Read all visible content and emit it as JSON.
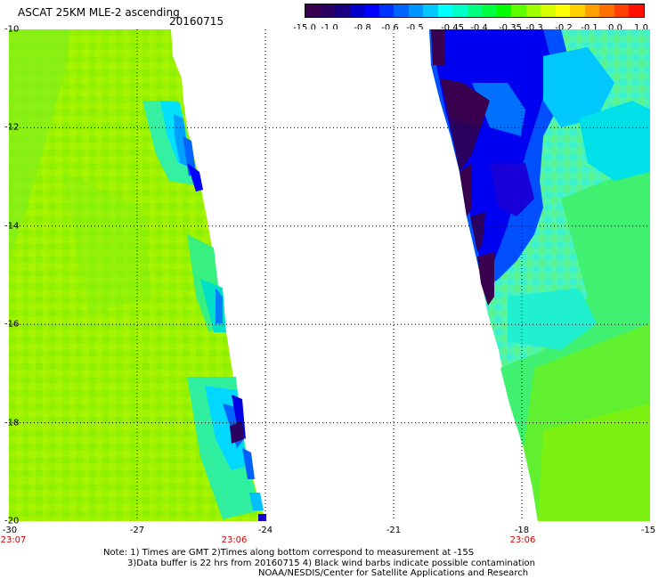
{
  "header": {
    "title": "ASCAT 25KM MLE-2 ascending",
    "date": "20160715"
  },
  "colorbar": {
    "colors": [
      "#3a0050",
      "#2a0060",
      "#1a0080",
      "#0000c8",
      "#0000ff",
      "#0032ff",
      "#0064ff",
      "#0096ff",
      "#00c8ff",
      "#00ffff",
      "#00ffc8",
      "#00ff80",
      "#00ff40",
      "#00ff00",
      "#60ff00",
      "#a0ff00",
      "#d8ff00",
      "#ffff00",
      "#ffd000",
      "#ffa000",
      "#ff7000",
      "#ff4000",
      "#ff1000"
    ],
    "tick_labels": [
      "-15.0",
      "-1.0",
      "-0.8",
      "-0.6",
      "-0.5",
      "-0.45",
      "-0.4",
      "-0.35",
      "-0.3",
      "-0.2",
      "-0.1",
      "0.0",
      "1.0"
    ]
  },
  "map": {
    "lon_range": [
      -30,
      -15
    ],
    "lat_range": [
      -20,
      -10
    ],
    "x_tick_labels": [
      "-30",
      "-27",
      "-24",
      "-21",
      "-18",
      "-15"
    ],
    "y_tick_labels": [
      "-10",
      "-12",
      "-14",
      "-16",
      "-18",
      "-20"
    ],
    "time_labels": {
      "t1": "23:07",
      "t2": "23:06",
      "t3": "23:06"
    }
  },
  "notes": {
    "line1": "Note: 1) Times are GMT 2)Times along bottom correspond to measurement at -15S",
    "line2": "3)Data buffer is 22 hrs from 20160715 4) Black wind barbs indicate possible contamination",
    "line3": "NOAA/NESDIS/Center for Satellite Applications and Research"
  }
}
